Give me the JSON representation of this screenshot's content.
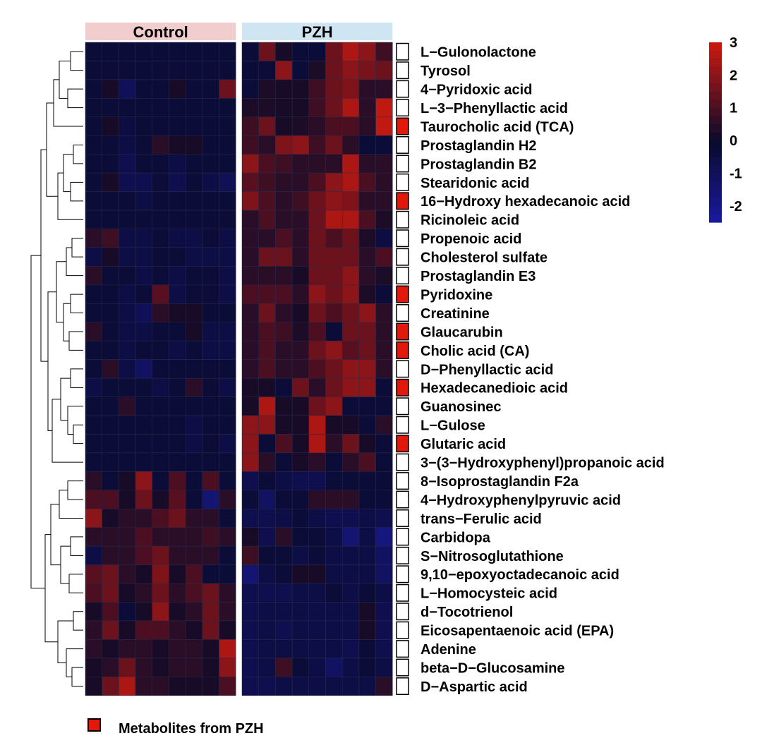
{
  "chart_data": {
    "type": "heatmap",
    "title": "",
    "groups": [
      {
        "name": "Control",
        "n": 9,
        "color": "#f1cdcd"
      },
      {
        "name": "PZH",
        "n": 9,
        "color": "#cfe6f2"
      }
    ],
    "rows": [
      {
        "label": "L−Gulonolactone",
        "pzh": false,
        "values": [
          -0.3,
          -0.3,
          -0.3,
          -0.3,
          -0.3,
          -0.3,
          -0.3,
          -0.3,
          -0.3,
          -0.3,
          1.5,
          0.2,
          -0.3,
          -0.3,
          1.5,
          2.5,
          2.0,
          0.8
        ]
      },
      {
        "label": "Tyrosol",
        "pzh": false,
        "values": [
          -0.3,
          -0.3,
          -0.3,
          -0.3,
          -0.3,
          -0.3,
          -0.3,
          -0.3,
          -0.3,
          -0.3,
          -0.3,
          2.0,
          -0.3,
          0.3,
          1.5,
          2.0,
          1.7,
          1.5
        ]
      },
      {
        "label": "4−Pyridoxic acid",
        "pzh": false,
        "values": [
          -0.3,
          0.2,
          -1.0,
          -0.3,
          -0.3,
          0.2,
          -0.3,
          -0.3,
          1.5,
          -0.3,
          0.3,
          0.2,
          0.2,
          0.8,
          1.5,
          1.8,
          0.5,
          0.5
        ]
      },
      {
        "label": "L−3−Phenyllactic acid",
        "pzh": false,
        "values": [
          -0.3,
          -0.3,
          -0.3,
          -0.3,
          -0.3,
          -0.3,
          -0.3,
          -0.3,
          -0.3,
          0.3,
          0.3,
          0.2,
          0.2,
          0.8,
          1.5,
          2.5,
          0.5,
          2.8
        ]
      },
      {
        "label": "Taurocholic acid (TCA)",
        "pzh": true,
        "values": [
          -0.3,
          0.2,
          -0.5,
          -0.3,
          -0.3,
          -0.3,
          -0.3,
          -0.3,
          -0.3,
          0.8,
          1.5,
          0.2,
          0.3,
          0.5,
          1.0,
          1.0,
          0.5,
          2.8
        ]
      },
      {
        "label": "Prostaglandin H2",
        "pzh": false,
        "values": [
          -0.3,
          -0.3,
          -0.6,
          -0.3,
          0.5,
          0.2,
          0.2,
          -0.3,
          -0.3,
          0.8,
          0.5,
          1.8,
          2.0,
          0.8,
          1.5,
          0.5,
          -0.3,
          -0.3
        ]
      },
      {
        "label": "Prostaglandin B2",
        "pzh": false,
        "values": [
          -0.3,
          -0.3,
          -0.8,
          -0.3,
          -0.3,
          -0.6,
          -0.3,
          -0.3,
          -0.3,
          2.0,
          1.0,
          0.8,
          0.5,
          0.5,
          0.5,
          2.5,
          0.5,
          0.5
        ]
      },
      {
        "label": "Stearidonic acid",
        "pzh": false,
        "values": [
          -0.3,
          0.2,
          -0.8,
          -0.8,
          -0.3,
          -0.8,
          -0.3,
          -0.6,
          -0.9,
          1.2,
          0.8,
          0.5,
          0.5,
          1.0,
          2.0,
          2.5,
          1.0,
          0.5
        ]
      },
      {
        "label": "16−Hydroxy hexadecanoic acid",
        "pzh": true,
        "values": [
          -0.3,
          -0.3,
          -0.3,
          -0.6,
          -0.3,
          -0.3,
          -0.3,
          -0.3,
          -0.3,
          1.8,
          1.0,
          0.5,
          0.8,
          1.5,
          2.0,
          1.8,
          0.5,
          0.5
        ]
      },
      {
        "label": "Ricinoleic acid",
        "pzh": false,
        "values": [
          -0.3,
          -0.3,
          -0.3,
          -0.3,
          -0.3,
          -0.3,
          -0.3,
          -0.3,
          -0.3,
          0.5,
          1.0,
          0.5,
          0.5,
          1.5,
          2.5,
          2.5,
          1.0,
          0.3
        ]
      },
      {
        "label": "Propenoic acid",
        "pzh": false,
        "values": [
          0.5,
          0.8,
          -0.6,
          -0.6,
          -0.3,
          -0.6,
          -0.6,
          -0.3,
          -0.6,
          0.5,
          0.5,
          1.0,
          0.5,
          1.5,
          1.0,
          1.5,
          0.3,
          -0.5
        ]
      },
      {
        "label": "Cholesterol sulfate",
        "pzh": false,
        "values": [
          -0.6,
          0.2,
          -0.6,
          -0.6,
          -0.3,
          -0.3,
          -0.6,
          -0.6,
          -0.6,
          0.5,
          1.5,
          1.5,
          0.5,
          1.5,
          1.5,
          1.5,
          0.5,
          1.0
        ]
      },
      {
        "label": "Prostaglandin E3",
        "pzh": false,
        "values": [
          0.5,
          -0.3,
          -0.3,
          -0.6,
          -0.3,
          -0.6,
          -0.3,
          -0.3,
          -0.6,
          0.5,
          0.5,
          0.5,
          0.2,
          1.5,
          1.5,
          2.0,
          0.5,
          0.3
        ]
      },
      {
        "label": "Pyridoxine",
        "pzh": true,
        "values": [
          -0.3,
          -0.3,
          -0.6,
          -0.3,
          1.2,
          -0.6,
          -0.3,
          -0.3,
          -0.6,
          1.0,
          1.0,
          1.0,
          0.5,
          2.0,
          1.5,
          2.0,
          0.3,
          -0.3
        ]
      },
      {
        "label": "Creatinine",
        "pzh": false,
        "values": [
          -0.3,
          -0.3,
          -0.6,
          -1.0,
          0.5,
          0.2,
          0.2,
          -0.3,
          -0.3,
          0.5,
          1.5,
          0.5,
          0.2,
          1.5,
          1.0,
          1.5,
          2.0,
          0.5
        ]
      },
      {
        "label": "Glaucarubin",
        "pzh": true,
        "values": [
          0.5,
          -0.3,
          -0.6,
          -0.6,
          -0.3,
          -0.3,
          0.2,
          -0.6,
          -0.6,
          0.5,
          1.0,
          0.8,
          0.3,
          1.0,
          -0.3,
          1.5,
          1.5,
          0.5
        ]
      },
      {
        "label": "Cholic acid (CA)",
        "pzh": true,
        "values": [
          -0.3,
          -0.3,
          -0.6,
          -0.3,
          -0.3,
          -0.6,
          -0.3,
          -0.6,
          -0.6,
          0.5,
          1.0,
          0.5,
          0.5,
          1.5,
          2.0,
          1.2,
          1.5,
          0.5
        ]
      },
      {
        "label": "D−Phenyllactic acid",
        "pzh": false,
        "values": [
          -0.3,
          0.5,
          -0.6,
          -1.2,
          -0.3,
          -0.3,
          -0.3,
          -0.3,
          -0.3,
          0.5,
          1.0,
          0.5,
          0.5,
          1.0,
          1.5,
          2.0,
          2.0,
          0.5
        ]
      },
      {
        "label": "Hexadecanedioic acid",
        "pzh": true,
        "values": [
          -0.6,
          -0.3,
          -0.3,
          -0.3,
          -0.6,
          -0.3,
          0.5,
          -0.3,
          -0.6,
          0.2,
          0.2,
          -0.3,
          1.5,
          0.5,
          1.5,
          2.0,
          2.0,
          -0.3
        ]
      },
      {
        "label": "Guanosinec",
        "pzh": false,
        "values": [
          -0.3,
          -0.3,
          0.5,
          -0.3,
          -0.3,
          -0.3,
          -0.3,
          -0.3,
          -0.3,
          0.2,
          2.5,
          0.2,
          0.2,
          1.5,
          2.0,
          -0.3,
          -0.3,
          -0.3
        ]
      },
      {
        "label": "L−Gulose",
        "pzh": false,
        "values": [
          -0.3,
          -0.3,
          -0.3,
          -0.3,
          -0.3,
          -0.3,
          -0.6,
          -0.3,
          -0.3,
          2.0,
          2.0,
          0.2,
          0.2,
          2.5,
          0.2,
          0.2,
          -0.3,
          0.5
        ]
      },
      {
        "label": "Glutaric acid",
        "pzh": true,
        "values": [
          -0.3,
          -0.3,
          -0.3,
          -0.3,
          -0.3,
          -0.3,
          -0.6,
          -0.3,
          -0.6,
          2.0,
          -0.3,
          1.0,
          0.2,
          2.5,
          0.5,
          1.5,
          0.2,
          -0.3
        ]
      },
      {
        "label": "3−(3−Hydroxyphenyl)propanoic acid",
        "pzh": false,
        "values": [
          -0.3,
          -0.3,
          -0.3,
          -0.3,
          -0.3,
          -0.3,
          -0.3,
          -0.3,
          -0.3,
          2.0,
          0.5,
          -0.3,
          0.2,
          0.5,
          -0.3,
          0.5,
          1.0,
          -0.3
        ]
      },
      {
        "label": "8−Isoprostaglandin F2a",
        "pzh": false,
        "values": [
          0.5,
          -0.3,
          0.2,
          2.0,
          -0.3,
          1.0,
          -0.3,
          1.0,
          -0.3,
          -0.8,
          -0.3,
          -0.6,
          -0.8,
          -0.8,
          -0.3,
          -0.3,
          -0.3,
          -0.3
        ]
      },
      {
        "label": "4−Hydroxyphenylpyruvic acid",
        "pzh": false,
        "values": [
          1.0,
          1.0,
          0.2,
          1.5,
          0.2,
          1.2,
          -0.3,
          -1.5,
          0.5,
          -0.3,
          -1.2,
          -0.3,
          -0.3,
          0.5,
          0.5,
          0.5,
          -0.3,
          -0.3
        ]
      },
      {
        "label": "trans−Ferulic acid",
        "pzh": false,
        "values": [
          2.0,
          0.2,
          0.5,
          0.5,
          1.0,
          1.5,
          0.5,
          0.5,
          -0.3,
          -0.8,
          -0.8,
          -0.6,
          -0.3,
          -0.6,
          -0.8,
          -0.8,
          -0.6,
          -0.8
        ]
      },
      {
        "label": "Carbidopa",
        "pzh": false,
        "values": [
          0.5,
          0.5,
          0.5,
          1.0,
          0.5,
          0.5,
          0.5,
          0.8,
          0.5,
          0.2,
          -0.8,
          0.5,
          -0.3,
          -0.3,
          -0.6,
          -1.5,
          -0.6,
          -1.8
        ]
      },
      {
        "label": "S−Nitrosoglutathione",
        "pzh": false,
        "values": [
          -0.6,
          0.5,
          0.5,
          1.0,
          1.5,
          0.5,
          0.5,
          0.5,
          -0.3,
          0.8,
          -0.3,
          -0.3,
          -0.6,
          -0.3,
          -0.6,
          -0.6,
          -0.6,
          -1.2
        ]
      },
      {
        "label": "9,10−epoxyoctadecanoic acid",
        "pzh": false,
        "values": [
          1.2,
          1.5,
          0.5,
          0.2,
          1.8,
          0.2,
          1.0,
          -0.3,
          -0.3,
          -1.5,
          -0.6,
          -0.3,
          0.2,
          0.2,
          -0.6,
          -0.6,
          -0.6,
          -1.2
        ]
      },
      {
        "label": "L−Homocysteic acid",
        "pzh": false,
        "values": [
          1.0,
          1.5,
          0.2,
          0.5,
          1.5,
          0.5,
          1.0,
          1.5,
          0.5,
          -0.8,
          -0.8,
          -0.8,
          -0.6,
          -0.6,
          -0.3,
          -0.6,
          -0.3,
          -0.6
        ]
      },
      {
        "label": "d−Tocotrienol",
        "pzh": false,
        "values": [
          0.2,
          1.0,
          -0.3,
          0.2,
          2.0,
          0.2,
          0.5,
          1.5,
          0.5,
          -0.8,
          -0.6,
          -0.6,
          -0.6,
          -0.6,
          -0.6,
          -0.6,
          0.2,
          -0.8
        ]
      },
      {
        "label": "Eicosapentaenoic acid (EPA)",
        "pzh": false,
        "values": [
          0.5,
          1.5,
          0.2,
          1.0,
          1.0,
          0.5,
          0.2,
          1.5,
          0.2,
          -0.8,
          -0.6,
          -0.8,
          -0.6,
          -0.6,
          -0.6,
          -0.6,
          0.2,
          -0.8
        ]
      },
      {
        "label": "Adenine",
        "pzh": false,
        "values": [
          0.5,
          0.2,
          0.5,
          0.5,
          0.2,
          0.5,
          0.5,
          0.2,
          2.5,
          -0.8,
          -0.6,
          -0.6,
          -0.6,
          -0.6,
          -0.6,
          -0.8,
          -0.3,
          -0.8
        ]
      },
      {
        "label": "beta−D−Glucosamine",
        "pzh": false,
        "values": [
          0.2,
          0.5,
          1.5,
          0.5,
          0.2,
          0.5,
          0.5,
          0.2,
          2.0,
          -0.8,
          -0.6,
          0.8,
          -0.3,
          -0.6,
          -1.2,
          -0.6,
          -0.3,
          -0.6
        ]
      },
      {
        "label": "D−Aspartic acid",
        "pzh": false,
        "values": [
          0.2,
          1.5,
          2.5,
          0.5,
          0.5,
          0.2,
          0.2,
          0.2,
          1.0,
          -0.8,
          -0.8,
          -0.6,
          -0.6,
          -0.6,
          -0.6,
          -0.6,
          -0.6,
          0.5
        ]
      }
    ],
    "color_scale": {
      "min": -2.5,
      "max": 3,
      "low_color": "#1a1aa0",
      "mid_color": "#0a0a2a",
      "high_color": "#cc1a10",
      "ticks": [
        3,
        2,
        1,
        0,
        -1,
        -2
      ]
    },
    "tick_labels": [
      "3",
      "2",
      "1",
      "0",
      "-1",
      "-2"
    ],
    "pzh_marker_color": "#e3170a",
    "legend_label": "Metabolites from PZH"
  }
}
